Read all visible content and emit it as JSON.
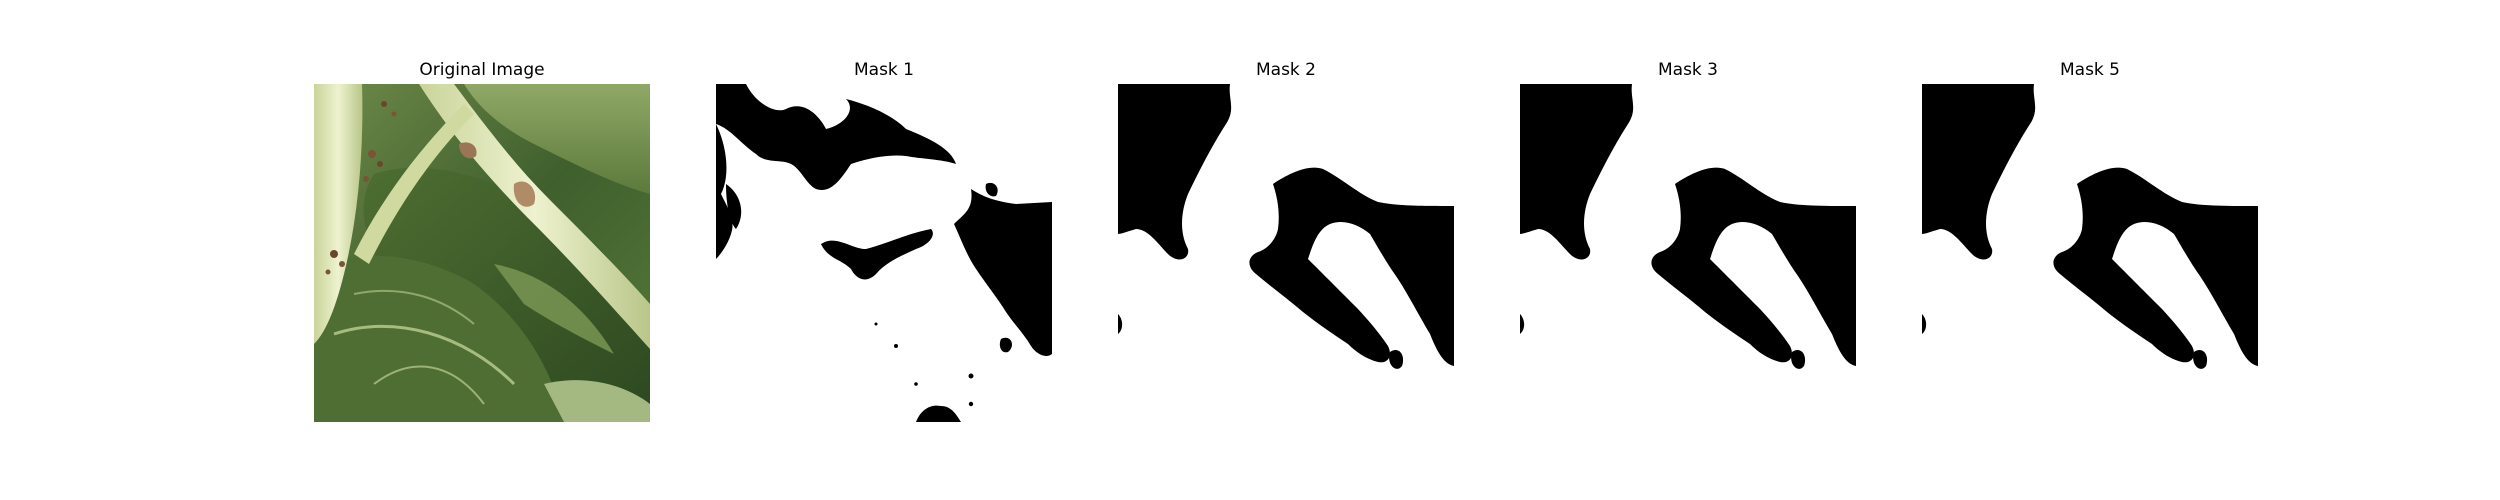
{
  "figure": {
    "panels": [
      {
        "title": "Original Image",
        "kind": "photo",
        "subject": "leafy-green-vegetable-closeup"
      },
      {
        "title": "Mask 1",
        "kind": "binary-mask"
      },
      {
        "title": "Mask 2",
        "kind": "binary-mask"
      },
      {
        "title": "Mask 3",
        "kind": "binary-mask"
      },
      {
        "title": "Mask 5",
        "kind": "binary-mask"
      }
    ],
    "colors": {
      "background": "#ffffff",
      "mask_fill": "#000000",
      "leaf_dark": "#2f4a22",
      "leaf_mid": "#5e7d3c",
      "leaf_light": "#a9bd7c",
      "stem": "#dfe6b4",
      "spot_brown": "#7a5436"
    }
  }
}
